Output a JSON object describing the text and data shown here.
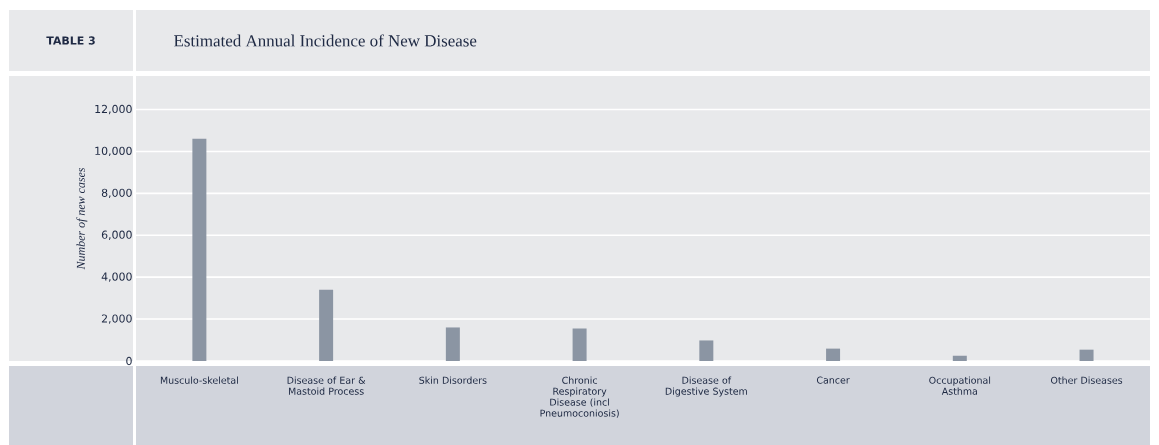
{
  "chart_data": {
    "type": "bar",
    "title": "Estimated Annual Incidence of New Disease",
    "annotations": [
      "TABLE 3"
    ],
    "ylabel": "Number of new cases",
    "categories": [
      "Musculo-skeletal",
      "Disease of Ear & Mastoid Process",
      "Skin Disorders",
      "Chronic Respiratory Disease (incl Pneumoconiosis)",
      "Disease of Digestive System",
      "Cancer",
      "Occupational Asthma",
      "Other Diseases"
    ],
    "values": [
      10600,
      3400,
      1600,
      1550,
      980,
      590,
      250,
      540
    ],
    "color": "#8b95a3",
    "ylim": [
      0,
      13600
    ],
    "yticks": [
      {
        "value": 0,
        "label": "0"
      },
      {
        "value": 2000,
        "label": "2,000"
      },
      {
        "value": 4000,
        "label": "4,000"
      },
      {
        "value": 6000,
        "label": "6,000"
      },
      {
        "value": 8000,
        "label": "8,000"
      },
      {
        "value": 10000,
        "label": "10,000"
      },
      {
        "value": 12000,
        "label": "12,000"
      }
    ],
    "grid": "y"
  }
}
